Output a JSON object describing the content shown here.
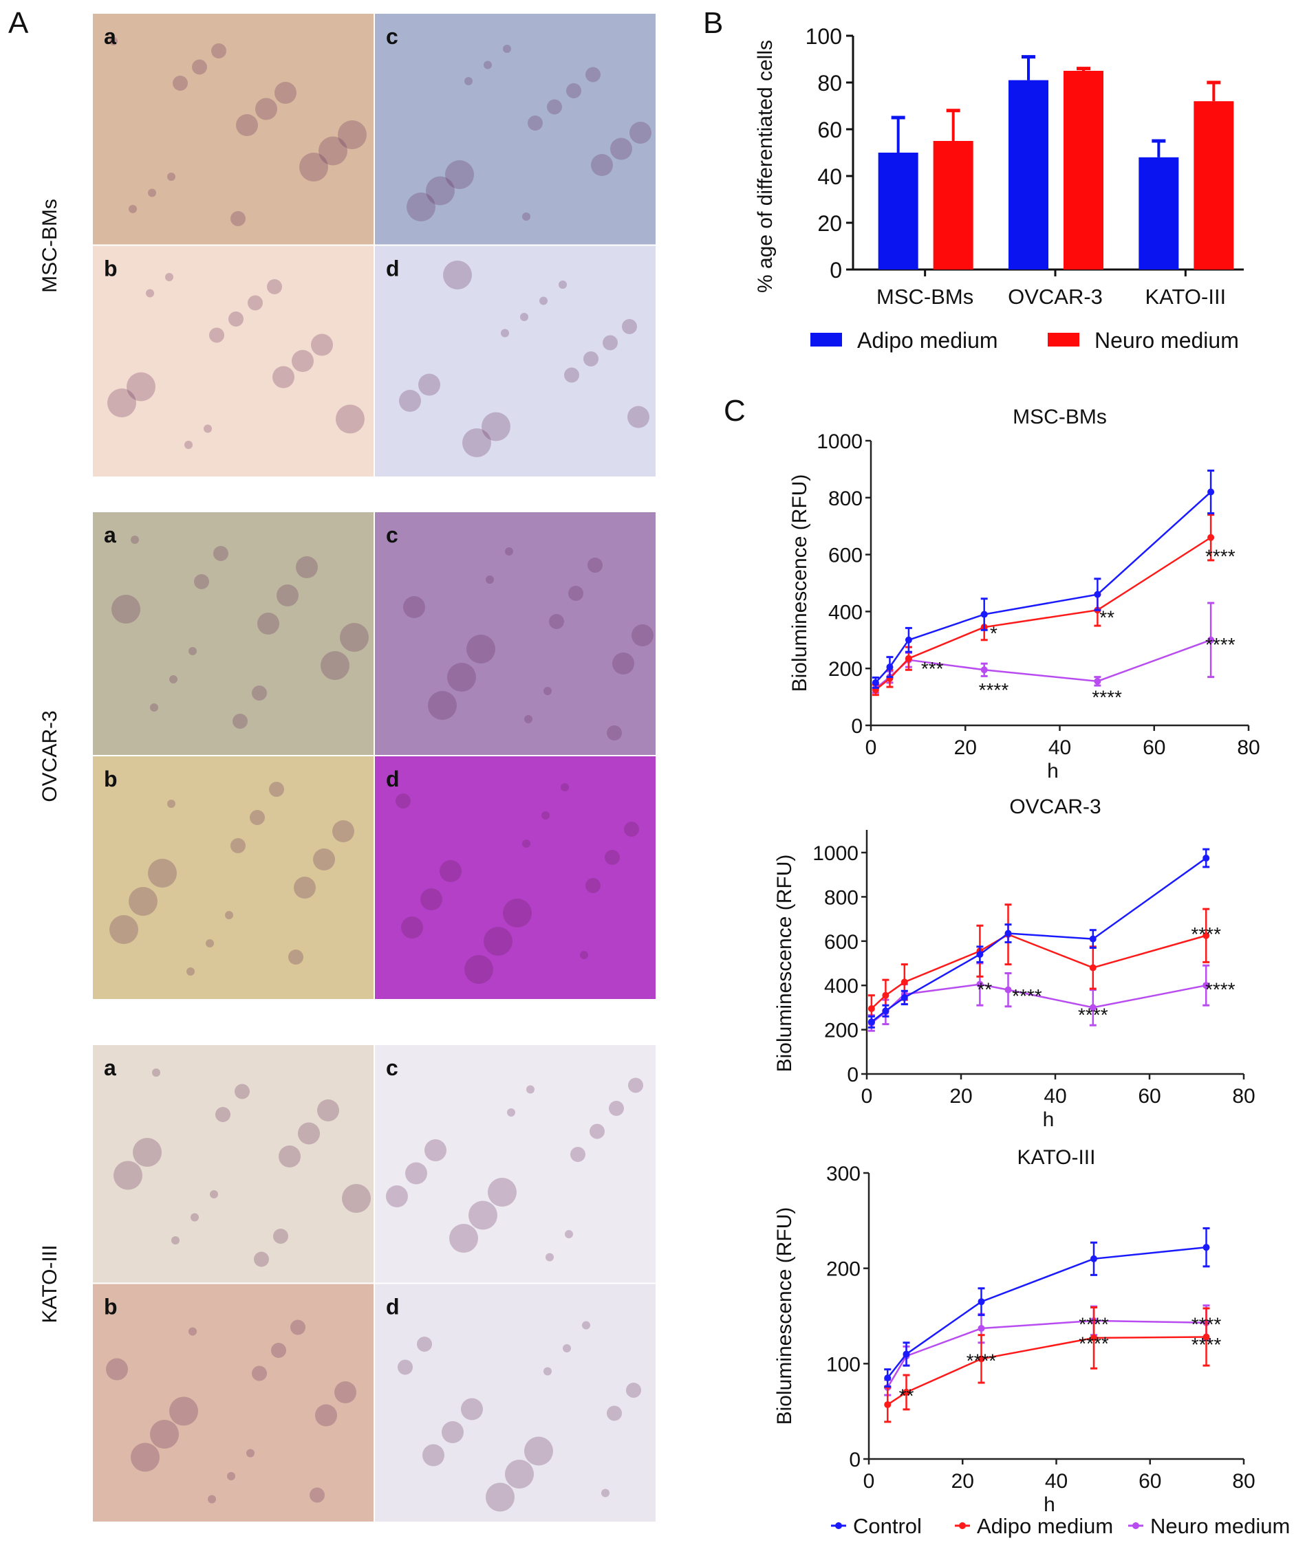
{
  "panel_labels": {
    "A": "A",
    "B": "B",
    "C": "C"
  },
  "micrographs": [
    {
      "group": "MSC-BMs",
      "tiles": [
        {
          "letter": "a",
          "color": "#d9b9a0"
        },
        {
          "letter": "b",
          "color": "#f3ddd0"
        },
        {
          "letter": "c",
          "color": "#a9b3d0"
        },
        {
          "letter": "d",
          "color": "#dcdcef"
        }
      ]
    },
    {
      "group": "OVCAR-3",
      "tiles": [
        {
          "letter": "a",
          "color": "#bfb8a0"
        },
        {
          "letter": "b",
          "color": "#d9c79a"
        },
        {
          "letter": "c",
          "color": "#a887b8"
        },
        {
          "letter": "d",
          "color": "#b540c8"
        }
      ]
    },
    {
      "group": "KATO-III",
      "tiles": [
        {
          "letter": "a",
          "color": "#e6dcd2"
        },
        {
          "letter": "b",
          "color": "#dcb9a8"
        },
        {
          "letter": "c",
          "color": "#eeeaf2"
        },
        {
          "letter": "d",
          "color": "#eae6ef"
        }
      ]
    }
  ],
  "chart_data": [
    {
      "type": "bar",
      "panel": "B",
      "ylabel": "% age of differentiated cells",
      "ylim": [
        0,
        100
      ],
      "yticks": [
        0,
        20,
        40,
        60,
        80,
        100
      ],
      "categories": [
        "MSC-BMs",
        "OVCAR-3",
        "KATO-III"
      ],
      "series": [
        {
          "name": "Adipo medium",
          "color": "#0a14f0",
          "values": [
            50,
            81,
            48
          ],
          "error_upper": [
            65,
            91,
            55
          ]
        },
        {
          "name": "Neuro medium",
          "color": "#ff0a0a",
          "values": [
            55,
            85,
            72
          ],
          "error_upper": [
            68,
            86,
            80
          ]
        }
      ],
      "legend": "bottom"
    },
    {
      "type": "line",
      "panel": "C",
      "title": "MSC-BMs",
      "xlabel": "h",
      "ylabel": "Bioluminescence (RFU)",
      "xlim": [
        0,
        80
      ],
      "ylim": [
        0,
        1000
      ],
      "xticks": [
        0,
        20,
        40,
        60,
        80
      ],
      "yticks": [
        0,
        200,
        400,
        600,
        800,
        1000
      ],
      "series": [
        {
          "name": "Control",
          "color": "#1a1aff",
          "x": [
            1,
            4,
            8,
            24,
            48,
            72
          ],
          "y": [
            150,
            205,
            300,
            390,
            460,
            820
          ],
          "err": [
            18,
            35,
            42,
            55,
            55,
            75
          ]
        },
        {
          "name": "Adipo medium",
          "color": "#ff1a1a",
          "x": [
            1,
            4,
            8,
            24,
            48,
            72
          ],
          "y": [
            125,
            165,
            235,
            345,
            405,
            660
          ],
          "err": [
            18,
            30,
            40,
            45,
            55,
            80
          ]
        },
        {
          "name": "Neuro medium",
          "color": "#b84cf0",
          "x": [
            1,
            4,
            8,
            24,
            48,
            72
          ],
          "y": [
            130,
            170,
            230,
            195,
            155,
            300
          ],
          "err": [
            15,
            20,
            25,
            22,
            15,
            130
          ]
        }
      ],
      "annotations": [
        {
          "text": "***",
          "x": 13,
          "y": 205
        },
        {
          "text": "*",
          "x": 26,
          "y": 330
        },
        {
          "text": "****",
          "x": 26,
          "y": 130
        },
        {
          "text": "**",
          "x": 50,
          "y": 385
        },
        {
          "text": "****",
          "x": 50,
          "y": 105
        },
        {
          "text": "****",
          "x": 74,
          "y": 600
        },
        {
          "text": "****",
          "x": 74,
          "y": 290
        }
      ]
    },
    {
      "type": "line",
      "panel": "C",
      "title": "OVCAR-3",
      "xlabel": "h",
      "ylabel": "Bioluminescence (RFU)",
      "xlim": [
        0,
        80
      ],
      "ylim": [
        0,
        1000
      ],
      "xticks": [
        0,
        20,
        40,
        60,
        80
      ],
      "yticks": [
        0,
        200,
        400,
        600,
        800,
        1000
      ],
      "series": [
        {
          "name": "Control",
          "color": "#1a1aff",
          "x": [
            1,
            4,
            8,
            24,
            30,
            48,
            72
          ],
          "y": [
            235,
            285,
            345,
            540,
            635,
            610,
            975
          ],
          "err": [
            25,
            25,
            30,
            35,
            40,
            40,
            40
          ]
        },
        {
          "name": "Adipo medium",
          "color": "#ff1a1a",
          "x": [
            1,
            4,
            8,
            24,
            30,
            48,
            72
          ],
          "y": [
            295,
            355,
            415,
            555,
            630,
            480,
            625
          ],
          "err": [
            60,
            70,
            80,
            115,
            135,
            95,
            120
          ]
        },
        {
          "name": "Neuro medium",
          "color": "#b84cf0",
          "x": [
            1,
            4,
            8,
            24,
            30,
            48,
            72
          ],
          "y": [
            230,
            280,
            360,
            405,
            380,
            300,
            400
          ],
          "err": [
            35,
            55,
            45,
            95,
            75,
            80,
            90
          ]
        }
      ],
      "annotations": [
        {
          "text": "**",
          "x": 25,
          "y": 390
        },
        {
          "text": "****",
          "x": 34,
          "y": 360
        },
        {
          "text": "****",
          "x": 48,
          "y": 275
        },
        {
          "text": "****",
          "x": 72,
          "y": 640
        },
        {
          "text": "****",
          "x": 75,
          "y": 390
        }
      ]
    },
    {
      "type": "line",
      "panel": "C",
      "title": "KATO-III",
      "xlabel": "h",
      "ylabel": "Bioluminescence (RFU)",
      "xlim": [
        0,
        80
      ],
      "ylim": [
        0,
        300
      ],
      "xticks": [
        0,
        20,
        40,
        60,
        80
      ],
      "yticks": [
        0,
        100,
        200,
        300
      ],
      "series": [
        {
          "name": "Control",
          "color": "#1a1aff",
          "x": [
            4,
            8,
            24,
            48,
            72
          ],
          "y": [
            85,
            110,
            165,
            210,
            222
          ],
          "err": [
            9,
            12,
            14,
            17,
            20
          ]
        },
        {
          "name": "Adipo medium",
          "color": "#ff1a1a",
          "x": [
            4,
            8,
            24,
            48,
            72
          ],
          "y": [
            57,
            70,
            105,
            127,
            128
          ],
          "err": [
            18,
            18,
            25,
            32,
            30
          ]
        },
        {
          "name": "Neuro medium",
          "color": "#b84cf0",
          "x": [
            4,
            8,
            24,
            48,
            72
          ],
          "y": [
            75,
            108,
            137,
            145,
            143
          ],
          "err": [
            8,
            10,
            15,
            15,
            18
          ]
        }
      ],
      "annotations": [
        {
          "text": "**",
          "x": 8,
          "y": 68
        },
        {
          "text": "****",
          "x": 24,
          "y": 105
        },
        {
          "text": "****",
          "x": 48,
          "y": 143
        },
        {
          "text": "****",
          "x": 48,
          "y": 123
        },
        {
          "text": "****",
          "x": 72,
          "y": 143
        },
        {
          "text": "****",
          "x": 72,
          "y": 122
        }
      ]
    }
  ],
  "line_legend": [
    "Control",
    "Adipo medium",
    "Neuro medium"
  ]
}
